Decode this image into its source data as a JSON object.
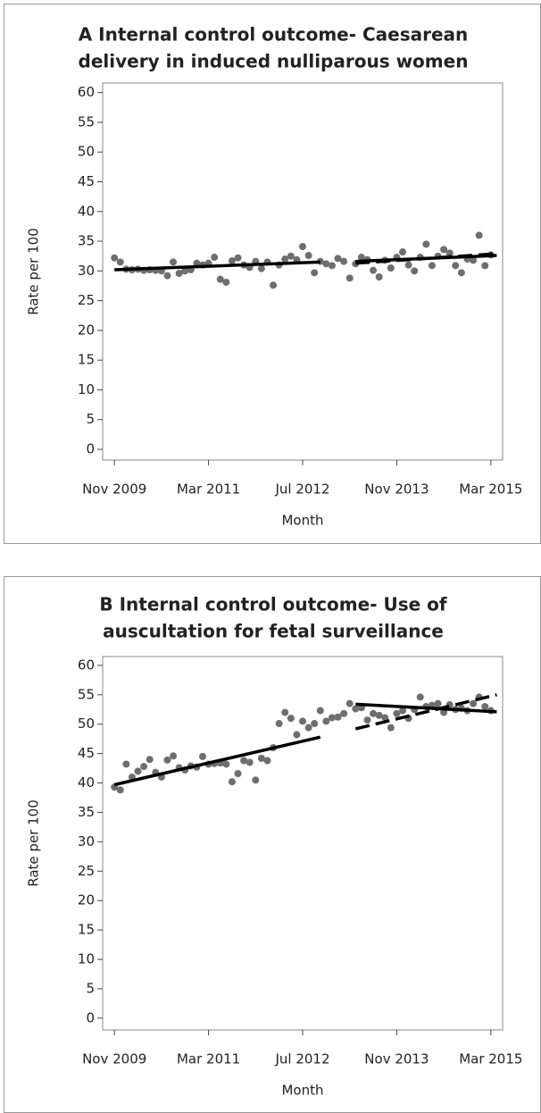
{
  "chart_data": [
    {
      "type": "scatter",
      "title": [
        "A Internal control outcome- Caesarean",
        "delivery in induced nulliparous women"
      ],
      "x_label": "Month",
      "y_label": "Rate per 100",
      "x": [
        "2009-11",
        "2009-12",
        "2010-01",
        "2010-02",
        "2010-03",
        "2010-04",
        "2010-05",
        "2010-06",
        "2010-07",
        "2010-08",
        "2010-09",
        "2010-10",
        "2010-11",
        "2010-12",
        "2011-01",
        "2011-02",
        "2011-03",
        "2011-04",
        "2011-05",
        "2011-06",
        "2011-07",
        "2011-08",
        "2011-09",
        "2011-10",
        "2011-11",
        "2011-12",
        "2012-01",
        "2012-02",
        "2012-03",
        "2012-04",
        "2012-05",
        "2012-06",
        "2012-07",
        "2012-08",
        "2012-09",
        "2012-10",
        "2012-11",
        "2012-12",
        "2013-01",
        "2013-02",
        "2013-03",
        "2013-04",
        "2013-05",
        "2013-06",
        "2013-07",
        "2013-08",
        "2013-09",
        "2013-10",
        "2013-11",
        "2013-12",
        "2014-01",
        "2014-02",
        "2014-03",
        "2014-04",
        "2014-05",
        "2014-06",
        "2014-07",
        "2014-08",
        "2014-09",
        "2014-10",
        "2014-11",
        "2014-12",
        "2015-01",
        "2015-02",
        "2015-03"
      ],
      "values": [
        32.2,
        31.5,
        30.3,
        30.2,
        30.3,
        30.1,
        30.2,
        30.1,
        30.0,
        29.2,
        31.5,
        29.6,
        30.0,
        30.2,
        31.3,
        31.0,
        31.3,
        32.3,
        28.6,
        28.1,
        31.7,
        32.2,
        31.0,
        30.6,
        31.6,
        30.4,
        31.5,
        27.6,
        31.0,
        32.0,
        32.5,
        31.9,
        34.1,
        32.6,
        29.7,
        31.6,
        31.2,
        30.9,
        32.1,
        31.6,
        28.8,
        31.2,
        32.3,
        31.9,
        30.1,
        29.0,
        31.8,
        30.5,
        32.3,
        33.2,
        31.0,
        30.0,
        32.3,
        34.5,
        30.9,
        32.5,
        33.6,
        33.0,
        30.9,
        29.7,
        32.0,
        31.8,
        36.0,
        30.9,
        32.7
      ],
      "color": "#6e6e6e",
      "lines": [
        {
          "x": [
            "2009-11",
            "2012-10"
          ],
          "values": [
            30.2,
            31.5
          ],
          "style": "solid"
        },
        {
          "x": [
            "2013-04",
            "2015-04"
          ],
          "values": [
            31.6,
            32.6
          ],
          "style": "solid"
        },
        {
          "x": [
            "2013-04",
            "2015-04"
          ],
          "values": [
            31.3,
            32.9
          ],
          "style": "dashed"
        }
      ],
      "xlim": [
        "2009-09",
        "2015-05"
      ],
      "xticks": [
        {
          "value": "2009-11",
          "label": "Nov 2009"
        },
        {
          "value": "2011-03",
          "label": "Mar 2011"
        },
        {
          "value": "2012-07",
          "label": "Jul 2012"
        },
        {
          "value": "2013-11",
          "label": "Nov 2013"
        },
        {
          "value": "2015-03",
          "label": "Mar 2015"
        }
      ],
      "ylim": [
        -1.8,
        61.6
      ],
      "yticks": [
        0,
        5,
        10,
        15,
        20,
        25,
        30,
        35,
        40,
        45,
        50,
        55,
        60
      ]
    },
    {
      "type": "scatter",
      "title": [
        "B Internal control outcome- Use of",
        "auscultation for fetal surveillance"
      ],
      "x_label": "Month",
      "y_label": "Rate per 100",
      "x": [
        "2009-11",
        "2009-12",
        "2010-01",
        "2010-02",
        "2010-03",
        "2010-04",
        "2010-05",
        "2010-06",
        "2010-07",
        "2010-08",
        "2010-09",
        "2010-10",
        "2010-11",
        "2010-12",
        "2011-01",
        "2011-02",
        "2011-03",
        "2011-04",
        "2011-05",
        "2011-06",
        "2011-07",
        "2011-08",
        "2011-09",
        "2011-10",
        "2011-11",
        "2011-12",
        "2012-01",
        "2012-02",
        "2012-03",
        "2012-04",
        "2012-05",
        "2012-06",
        "2012-07",
        "2012-08",
        "2012-09",
        "2012-10",
        "2012-11",
        "2012-12",
        "2013-01",
        "2013-02",
        "2013-03",
        "2013-04",
        "2013-05",
        "2013-06",
        "2013-07",
        "2013-08",
        "2013-09",
        "2013-10",
        "2013-11",
        "2013-12",
        "2014-01",
        "2014-02",
        "2014-03",
        "2014-04",
        "2014-05",
        "2014-06",
        "2014-07",
        "2014-08",
        "2014-09",
        "2014-10",
        "2014-11",
        "2014-12",
        "2015-01",
        "2015-02",
        "2015-03"
      ],
      "values": [
        39.3,
        38.8,
        43.2,
        41,
        42,
        42.8,
        44.0,
        41.8,
        41.0,
        43.9,
        44.6,
        42.6,
        42.2,
        42.9,
        42.7,
        44.5,
        43.2,
        43.3,
        43.4,
        43.2,
        40.2,
        41.6,
        43.8,
        43.5,
        40.5,
        44.2,
        43.8,
        46.0,
        50.1,
        52.0,
        51.0,
        48.2,
        50.5,
        49.4,
        50.1,
        52.3,
        50.5,
        51.1,
        51.2,
        51.8,
        53.5,
        52.6,
        52.8,
        50.7,
        51.8,
        51.5,
        51.1,
        49.4,
        51.8,
        52.3,
        51.0,
        52.5,
        54.6,
        53.0,
        53.2,
        53.5,
        52.0,
        53.3,
        52.5,
        52.7,
        52.3,
        53.5,
        54.6,
        53.0,
        52.3
      ],
      "color": "#6e6e6e",
      "lines": [
        {
          "x": [
            "2009-11",
            "2012-10"
          ],
          "values": [
            39.7,
            47.8
          ],
          "style": "solid"
        },
        {
          "x": [
            "2013-04",
            "2015-04"
          ],
          "values": [
            53.4,
            52.1
          ],
          "style": "solid"
        },
        {
          "x": [
            "2013-04",
            "2015-04"
          ],
          "values": [
            49.2,
            55.0
          ],
          "style": "dashed"
        }
      ],
      "xlim": [
        "2009-09",
        "2015-05"
      ],
      "xticks": [
        {
          "value": "2009-11",
          "label": "Nov 2009"
        },
        {
          "value": "2011-03",
          "label": "Mar 2011"
        },
        {
          "value": "2012-07",
          "label": "Jul 2012"
        },
        {
          "value": "2013-11",
          "label": "Nov 2013"
        },
        {
          "value": "2015-03",
          "label": "Mar 2015"
        }
      ],
      "ylim": [
        -2,
        61.5
      ],
      "yticks": [
        0,
        5,
        10,
        15,
        20,
        25,
        30,
        35,
        40,
        45,
        50,
        55,
        60
      ]
    }
  ]
}
